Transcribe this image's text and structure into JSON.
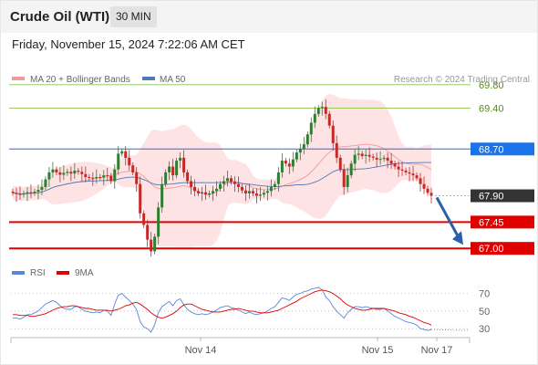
{
  "header": {
    "title": "Crude Oil (WTI)",
    "timeframe": "30 MIN",
    "datetime": "Friday, November 15, 2024 7:22:06 AM CET"
  },
  "legend": {
    "ma20_label": "MA 20 + Bollinger Bands",
    "ma50_label": "MA 50",
    "credit": "Research © 2024 Trading Central",
    "rsi_label": "RSI",
    "ma9_label": "9MA"
  },
  "colors": {
    "up": "#2e7d32",
    "down": "#c62828",
    "band": "#fde3e3",
    "ma20": "#f19a9a",
    "ma50": "#4f7ab8",
    "resistance_green": "#8bc34a",
    "pivot_blue": "#1a73e8",
    "support_red": "#e00000",
    "current": "#333333",
    "arrow": "#2b5fa8",
    "rsi": "#5b86d6",
    "rsi_ma": "#e00000"
  },
  "chart_data": [
    {
      "type": "candlestick",
      "ylim": [
        66.8,
        70.0
      ],
      "x_ticks": [
        "Nov 14",
        "Nov 15",
        "Nov 17"
      ],
      "levels": [
        {
          "value": 69.8,
          "label": "69.80",
          "kind": "resistance"
        },
        {
          "value": 69.4,
          "label": "69.40",
          "kind": "resistance"
        },
        {
          "value": 68.7,
          "label": "68.70",
          "kind": "pivot"
        },
        {
          "value": 67.9,
          "label": "67.90",
          "kind": "current"
        },
        {
          "value": 67.45,
          "label": "67.45",
          "kind": "support"
        },
        {
          "value": 67.0,
          "label": "67.00",
          "kind": "support"
        }
      ],
      "series": [
        {
          "name": "MA 20 + Bollinger Bands",
          "type": "band"
        },
        {
          "name": "MA 50",
          "type": "line"
        }
      ],
      "close": [
        67.95,
        67.93,
        67.92,
        67.94,
        67.96,
        67.95,
        67.97,
        68.0,
        68.05,
        68.18,
        68.3,
        68.35,
        68.3,
        68.26,
        68.29,
        68.31,
        68.28,
        68.33,
        68.31,
        68.27,
        68.22,
        68.21,
        68.2,
        68.22,
        68.21,
        68.25,
        68.24,
        68.15,
        68.35,
        68.62,
        68.66,
        68.55,
        68.42,
        68.3,
        68.1,
        67.6,
        67.4,
        67.15,
        66.95,
        67.2,
        67.7,
        68.1,
        68.3,
        68.4,
        68.25,
        68.5,
        68.55,
        68.3,
        68.15,
        68.05,
        67.98,
        67.94,
        67.96,
        67.92,
        67.94,
        67.98,
        68.02,
        68.1,
        68.15,
        68.2,
        68.14,
        68.1,
        68.05,
        67.99,
        67.94,
        67.98,
        67.94,
        67.9,
        67.92,
        67.95,
        67.98,
        68.05,
        68.1,
        68.3,
        68.5,
        68.45,
        68.4,
        68.52,
        68.64,
        68.7,
        68.78,
        68.95,
        69.15,
        69.3,
        69.4,
        69.42,
        69.3,
        69.1,
        68.8,
        68.55,
        68.35,
        68.05,
        68.25,
        68.45,
        68.6,
        68.62,
        68.58,
        68.6,
        68.57,
        68.55,
        68.52,
        68.53,
        68.55,
        68.5,
        68.45,
        68.4,
        68.35,
        68.33,
        68.3,
        68.28,
        68.25,
        68.2,
        68.1,
        68.02,
        67.95,
        67.9
      ]
    },
    {
      "type": "line",
      "ylim": [
        25,
        80
      ],
      "y_ticks": [
        30,
        50,
        70
      ],
      "series": [
        {
          "name": "RSI",
          "values": [
            42,
            42,
            41,
            43,
            46,
            46,
            48,
            50,
            54,
            58,
            60,
            62,
            60,
            56,
            53,
            52,
            52,
            55,
            55,
            52,
            50,
            49,
            48,
            49,
            48,
            51,
            50,
            45,
            58,
            68,
            70,
            66,
            62,
            58,
            52,
            38,
            32,
            30,
            26,
            35,
            48,
            55,
            58,
            61,
            56,
            62,
            64,
            57,
            52,
            49,
            47,
            46,
            47,
            46,
            47,
            49,
            51,
            54,
            55,
            56,
            54,
            53,
            51,
            49,
            47,
            49,
            47,
            46,
            47,
            48,
            50,
            53,
            55,
            60,
            65,
            64,
            62,
            66,
            69,
            70,
            72,
            73,
            75,
            76,
            77,
            74,
            66,
            62,
            55,
            50,
            46,
            42,
            48,
            52,
            55,
            55,
            54,
            55,
            54,
            53,
            52,
            52,
            53,
            50,
            47,
            44,
            42,
            40,
            38,
            37,
            36,
            34,
            30,
            29,
            28,
            29
          ]
        },
        {
          "name": "9MA",
          "values": [
            46,
            46,
            45,
            45,
            45,
            44,
            44,
            45,
            46,
            47,
            49,
            51,
            53,
            54,
            55,
            55,
            56,
            56,
            55,
            54,
            53,
            53,
            52,
            51,
            51,
            51,
            51,
            50,
            51,
            52,
            54,
            56,
            57,
            59,
            60,
            58,
            55,
            52,
            48,
            45,
            43,
            42,
            43,
            45,
            47,
            50,
            54,
            57,
            58,
            58,
            56,
            54,
            52,
            51,
            50,
            49,
            49,
            49,
            50,
            51,
            52,
            52,
            53,
            52,
            51,
            50,
            50,
            49,
            48,
            48,
            48,
            49,
            50,
            51,
            53,
            55,
            57,
            59,
            61,
            64,
            66,
            68,
            70,
            72,
            73,
            74,
            73,
            72,
            70,
            67,
            64,
            60,
            57,
            55,
            53,
            52,
            51,
            51,
            52,
            53,
            53,
            53,
            53,
            52,
            51,
            50,
            48,
            47,
            46,
            44,
            43,
            41,
            39,
            37,
            36,
            34
          ]
        }
      ]
    }
  ]
}
